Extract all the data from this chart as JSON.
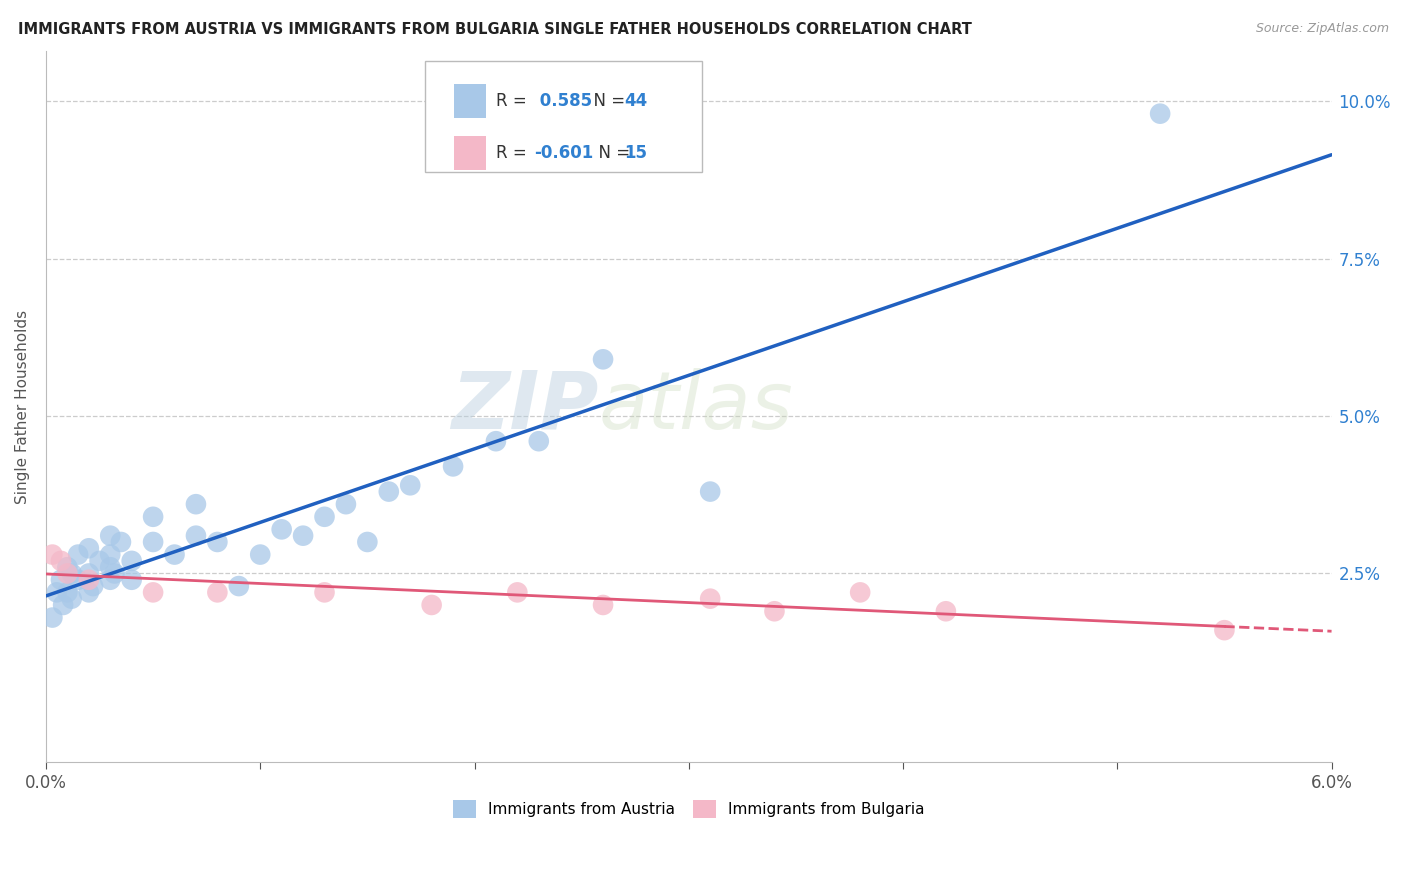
{
  "title": "IMMIGRANTS FROM AUSTRIA VS IMMIGRANTS FROM BULGARIA SINGLE FATHER HOUSEHOLDS CORRELATION CHART",
  "source": "Source: ZipAtlas.com",
  "ylabel": "Single Father Households",
  "xlim": [
    0.0,
    0.06
  ],
  "ylim": [
    -0.005,
    0.108
  ],
  "ytick_vals": [
    0.0,
    0.025,
    0.05,
    0.075,
    0.1
  ],
  "ytick_labels": [
    "",
    "2.5%",
    "5.0%",
    "7.5%",
    "10.0%"
  ],
  "xtick_vals": [
    0.0,
    0.01,
    0.02,
    0.03,
    0.04,
    0.05,
    0.06
  ],
  "xtick_show": [
    true,
    false,
    false,
    false,
    false,
    false,
    true
  ],
  "austria_R": 0.585,
  "austria_N": 44,
  "bulgaria_R": -0.601,
  "bulgaria_N": 15,
  "austria_dot_color": "#a8c8e8",
  "bulgaria_dot_color": "#f4b8c8",
  "austria_line_color": "#2060c0",
  "bulgaria_line_color": "#e05878",
  "legend_R_color": "#3080d0",
  "watermark_color": "#c8d8e8",
  "austria_x": [
    0.0003,
    0.0005,
    0.0007,
    0.0008,
    0.001,
    0.001,
    0.0012,
    0.0012,
    0.0015,
    0.0015,
    0.002,
    0.002,
    0.002,
    0.0022,
    0.0025,
    0.003,
    0.003,
    0.003,
    0.003,
    0.0032,
    0.0035,
    0.004,
    0.004,
    0.005,
    0.005,
    0.006,
    0.007,
    0.007,
    0.008,
    0.009,
    0.01,
    0.011,
    0.012,
    0.013,
    0.014,
    0.015,
    0.016,
    0.017,
    0.019,
    0.021,
    0.023,
    0.026,
    0.031,
    0.052
  ],
  "austria_y": [
    0.018,
    0.022,
    0.024,
    0.02,
    0.022,
    0.026,
    0.021,
    0.025,
    0.024,
    0.028,
    0.022,
    0.025,
    0.029,
    0.023,
    0.027,
    0.024,
    0.026,
    0.028,
    0.031,
    0.025,
    0.03,
    0.024,
    0.027,
    0.03,
    0.034,
    0.028,
    0.031,
    0.036,
    0.03,
    0.023,
    0.028,
    0.032,
    0.031,
    0.034,
    0.036,
    0.03,
    0.038,
    0.039,
    0.042,
    0.046,
    0.046,
    0.059,
    0.038,
    0.098
  ],
  "bulgaria_x": [
    0.0003,
    0.0007,
    0.001,
    0.002,
    0.005,
    0.008,
    0.013,
    0.018,
    0.022,
    0.026,
    0.031,
    0.034,
    0.038,
    0.042,
    0.055
  ],
  "bulgaria_y": [
    0.028,
    0.027,
    0.025,
    0.024,
    0.022,
    0.022,
    0.022,
    0.02,
    0.022,
    0.02,
    0.021,
    0.019,
    0.022,
    0.019,
    0.016
  ]
}
